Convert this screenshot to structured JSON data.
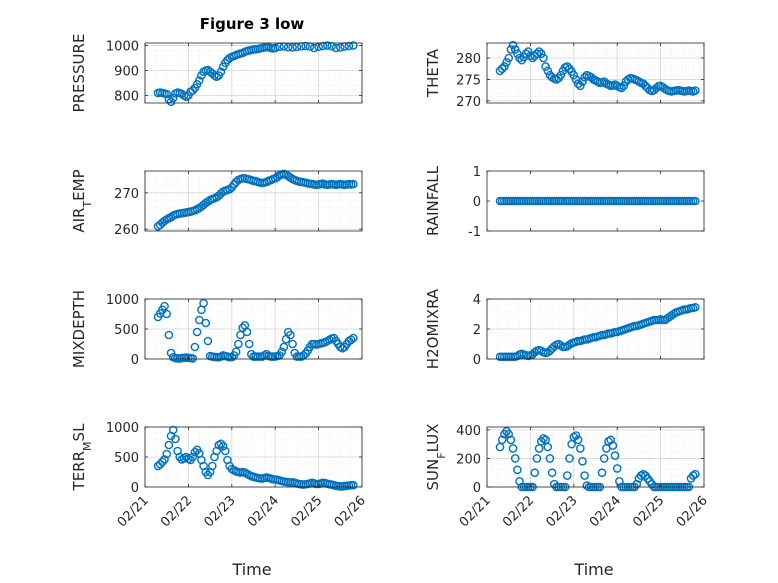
{
  "figure": {
    "title": "Figure 3 low",
    "xlabel": "Time",
    "x_ticks": [
      "02/21",
      "02/22",
      "02/23",
      "02/24",
      "02/25",
      "02/26"
    ],
    "marker_color": "#0072BD"
  },
  "chart_data": [
    {
      "type": "scatter",
      "ylabel": "PRESSURE",
      "ylim": [
        770,
        1010
      ],
      "yticks": [
        800,
        900,
        1000
      ],
      "grid": true,
      "x": [
        0.3,
        0.35,
        0.4,
        0.45,
        0.5,
        0.55,
        0.6,
        0.65,
        0.7,
        0.75,
        0.8,
        0.85,
        0.9,
        0.95,
        1.0,
        1.05,
        1.1,
        1.15,
        1.2,
        1.25,
        1.3,
        1.35,
        1.4,
        1.45,
        1.5,
        1.55,
        1.6,
        1.65,
        1.7,
        1.75,
        1.8,
        1.85,
        1.9,
        1.95,
        2.0,
        2.05,
        2.1,
        2.15,
        2.2,
        2.25,
        2.3,
        2.35,
        2.4,
        2.45,
        2.5,
        2.55,
        2.6,
        2.65,
        2.7,
        2.75,
        2.8,
        2.85,
        2.9,
        2.95,
        3.0,
        3.1,
        3.2,
        3.3,
        3.4,
        3.5,
        3.6,
        3.7,
        3.8,
        3.9,
        4.0,
        4.1,
        4.2,
        4.3,
        4.4,
        4.5,
        4.6,
        4.7,
        4.8
      ],
      "y": [
        810,
        812,
        810,
        808,
        806,
        785,
        775,
        790,
        808,
        812,
        810,
        806,
        800,
        795,
        800,
        815,
        820,
        830,
        845,
        860,
        880,
        895,
        900,
        902,
        895,
        888,
        880,
        875,
        880,
        895,
        915,
        930,
        942,
        950,
        955,
        958,
        962,
        965,
        968,
        970,
        975,
        978,
        980,
        982,
        984,
        985,
        986,
        988,
        990,
        992,
        993,
        994,
        990,
        988,
        990,
        995,
        996,
        993,
        992,
        994,
        997,
        998,
        996,
        990,
        995,
        998,
        1000,
        997,
        990,
        992,
        996,
        998,
        1000
      ]
    },
    {
      "type": "scatter",
      "ylabel": "THETA",
      "ylim": [
        269.5,
        283.5
      ],
      "yticks": [
        270,
        275,
        280
      ],
      "grid": true,
      "x": [
        0.3,
        0.35,
        0.4,
        0.45,
        0.5,
        0.55,
        0.6,
        0.65,
        0.7,
        0.75,
        0.8,
        0.85,
        0.9,
        0.95,
        1.0,
        1.05,
        1.1,
        1.15,
        1.2,
        1.25,
        1.3,
        1.35,
        1.4,
        1.45,
        1.5,
        1.55,
        1.6,
        1.65,
        1.7,
        1.75,
        1.8,
        1.85,
        1.9,
        1.95,
        2.0,
        2.05,
        2.1,
        2.15,
        2.2,
        2.25,
        2.3,
        2.35,
        2.4,
        2.45,
        2.5,
        2.55,
        2.6,
        2.65,
        2.7,
        2.75,
        2.8,
        2.85,
        2.9,
        2.95,
        3.0,
        3.05,
        3.1,
        3.15,
        3.2,
        3.25,
        3.3,
        3.35,
        3.4,
        3.45,
        3.5,
        3.55,
        3.6,
        3.65,
        3.7,
        3.75,
        3.8,
        3.85,
        3.9,
        3.95,
        4.0,
        4.05,
        4.1,
        4.15,
        4.2,
        4.25,
        4.3,
        4.35,
        4.4,
        4.45,
        4.5,
        4.55,
        4.6,
        4.65,
        4.7,
        4.75,
        4.8
      ],
      "y": [
        277,
        277.5,
        278,
        279,
        280,
        282,
        283,
        282,
        281,
        280,
        279.5,
        280.2,
        281,
        281.5,
        280.5,
        280,
        280.5,
        281,
        281.5,
        281,
        280,
        278,
        277,
        276,
        275.5,
        275.2,
        275,
        275.3,
        276,
        277,
        277.8,
        278,
        277.5,
        276.8,
        276,
        275,
        274,
        273.5,
        274.5,
        275.5,
        276,
        275.8,
        275.5,
        275,
        274.8,
        274.5,
        274.2,
        274.3,
        274.5,
        274,
        273.8,
        273.5,
        273.6,
        273.8,
        273.5,
        273.2,
        273,
        273.5,
        274.5,
        275,
        275.3,
        275.2,
        275,
        274.8,
        274.5,
        274.2,
        274,
        273.5,
        273,
        272.5,
        272.3,
        272.5,
        273,
        273.4,
        273.5,
        273.2,
        272.8,
        272.5,
        272.3,
        272.2,
        272.3,
        272.4,
        272.5,
        272.4,
        272.3,
        272.2,
        272.3,
        272.4,
        272.3,
        272.2,
        272.4
      ]
    },
    {
      "type": "scatter",
      "ylabel": "AIR_TEMP",
      "ylim": [
        259.5,
        276
      ],
      "yticks": [
        260,
        270
      ],
      "grid": true,
      "x": [
        0.3,
        0.35,
        0.4,
        0.45,
        0.5,
        0.55,
        0.6,
        0.65,
        0.7,
        0.75,
        0.8,
        0.85,
        0.9,
        0.95,
        1.0,
        1.05,
        1.1,
        1.15,
        1.2,
        1.25,
        1.3,
        1.35,
        1.4,
        1.45,
        1.5,
        1.55,
        1.6,
        1.65,
        1.7,
        1.75,
        1.8,
        1.85,
        1.9,
        1.95,
        2.0,
        2.05,
        2.1,
        2.15,
        2.2,
        2.25,
        2.3,
        2.35,
        2.4,
        2.45,
        2.5,
        2.55,
        2.6,
        2.65,
        2.7,
        2.75,
        2.8,
        2.85,
        2.9,
        2.95,
        3.0,
        3.05,
        3.1,
        3.15,
        3.2,
        3.25,
        3.3,
        3.35,
        3.4,
        3.45,
        3.5,
        3.55,
        3.6,
        3.65,
        3.7,
        3.75,
        3.8,
        3.85,
        3.9,
        3.95,
        4.0,
        4.05,
        4.1,
        4.15,
        4.2,
        4.25,
        4.3,
        4.35,
        4.4,
        4.45,
        4.5,
        4.55,
        4.6,
        4.65,
        4.7,
        4.75,
        4.8
      ],
      "y": [
        260.8,
        261.2,
        261.8,
        262.3,
        262.7,
        263,
        263.3,
        263.7,
        264,
        264.2,
        264.3,
        264.4,
        264.5,
        264.6,
        264.7,
        264.8,
        265,
        265.2,
        265.5,
        265.8,
        266.2,
        266.7,
        267.2,
        267.6,
        268,
        268.3,
        268.5,
        268.8,
        269.2,
        269.8,
        270.3,
        270.6,
        270.8,
        271,
        271.5,
        272.3,
        273,
        273.5,
        273.8,
        274,
        274,
        273.8,
        273.7,
        273.5,
        273.3,
        273.2,
        273,
        272.8,
        272.7,
        272.8,
        273,
        273.3,
        273.5,
        273.8,
        274,
        274.3,
        274.8,
        275,
        275.2,
        275,
        274.6,
        274.2,
        273.8,
        273.5,
        273.3,
        273.1,
        273,
        272.9,
        272.8,
        272.6,
        272.5,
        272.4,
        272.3,
        272.2,
        272.3,
        272.4,
        272.5,
        272.3,
        272.2,
        272.3,
        272.4,
        272.3,
        272.2,
        272.3,
        272.4,
        272.3,
        272.2,
        272.3,
        272.4,
        272.3,
        272.4
      ]
    },
    {
      "type": "scatter",
      "ylabel": "RAINFALL",
      "ylim": [
        -1,
        1
      ],
      "yticks": [
        -1,
        0,
        1
      ],
      "grid": false,
      "x_range": [
        0.3,
        4.8
      ],
      "point_count": 91,
      "constant_value": 0
    },
    {
      "type": "scatter",
      "ylabel": "MIXDEPTH",
      "ylim": [
        0,
        1000
      ],
      "yticks": [
        0,
        500,
        1000
      ],
      "grid": true,
      "x": [
        0.3,
        0.35,
        0.4,
        0.45,
        0.5,
        0.55,
        0.6,
        0.65,
        0.7,
        0.75,
        0.8,
        0.85,
        0.9,
        0.95,
        1.0,
        1.05,
        1.1,
        1.15,
        1.2,
        1.25,
        1.3,
        1.35,
        1.4,
        1.45,
        1.5,
        1.55,
        1.6,
        1.65,
        1.7,
        1.75,
        1.8,
        1.85,
        1.9,
        1.95,
        2.0,
        2.05,
        2.1,
        2.15,
        2.2,
        2.25,
        2.3,
        2.35,
        2.4,
        2.45,
        2.5,
        2.55,
        2.6,
        2.65,
        2.7,
        2.75,
        2.8,
        2.85,
        2.9,
        2.95,
        3.0,
        3.05,
        3.1,
        3.15,
        3.2,
        3.25,
        3.3,
        3.35,
        3.4,
        3.45,
        3.5,
        3.55,
        3.6,
        3.65,
        3.7,
        3.75,
        3.8,
        3.85,
        3.9,
        3.95,
        4.0,
        4.05,
        4.1,
        4.15,
        4.2,
        4.25,
        4.3,
        4.35,
        4.4,
        4.45,
        4.5,
        4.55,
        4.6,
        4.65,
        4.7,
        4.75,
        4.8
      ],
      "y": [
        700,
        760,
        820,
        880,
        750,
        400,
        100,
        30,
        15,
        10,
        10,
        15,
        20,
        25,
        20,
        15,
        10,
        200,
        450,
        650,
        820,
        930,
        600,
        300,
        50,
        40,
        35,
        30,
        30,
        40,
        60,
        50,
        40,
        30,
        30,
        60,
        120,
        250,
        400,
        520,
        560,
        450,
        250,
        80,
        40,
        40,
        40,
        40,
        40,
        60,
        80,
        50,
        40,
        40,
        40,
        50,
        60,
        120,
        200,
        330,
        450,
        400,
        250,
        100,
        40,
        40,
        40,
        60,
        90,
        140,
        200,
        250,
        250,
        240,
        250,
        260,
        270,
        280,
        300,
        320,
        340,
        350,
        300,
        250,
        200,
        180,
        200,
        250,
        300,
        320,
        350
      ]
    },
    {
      "type": "scatter",
      "ylabel": "H2OMIXRA",
      "ylim": [
        0,
        4
      ],
      "yticks": [
        0,
        2,
        4
      ],
      "grid": true,
      "x": [
        0.3,
        0.35,
        0.4,
        0.45,
        0.5,
        0.55,
        0.6,
        0.65,
        0.7,
        0.75,
        0.8,
        0.85,
        0.9,
        0.95,
        1.0,
        1.05,
        1.1,
        1.15,
        1.2,
        1.25,
        1.3,
        1.35,
        1.4,
        1.45,
        1.5,
        1.55,
        1.6,
        1.65,
        1.7,
        1.75,
        1.8,
        1.85,
        1.9,
        1.95,
        2.0,
        2.05,
        2.1,
        2.15,
        2.2,
        2.25,
        2.3,
        2.35,
        2.4,
        2.45,
        2.5,
        2.55,
        2.6,
        2.65,
        2.7,
        2.75,
        2.8,
        2.85,
        2.9,
        2.95,
        3.0,
        3.05,
        3.1,
        3.15,
        3.2,
        3.25,
        3.3,
        3.35,
        3.4,
        3.45,
        3.5,
        3.55,
        3.6,
        3.65,
        3.7,
        3.75,
        3.8,
        3.85,
        3.9,
        3.95,
        4.0,
        4.05,
        4.1,
        4.15,
        4.2,
        4.25,
        4.3,
        4.35,
        4.4,
        4.45,
        4.5,
        4.55,
        4.6,
        4.65,
        4.7,
        4.75,
        4.8
      ],
      "y": [
        0.15,
        0.15,
        0.15,
        0.15,
        0.15,
        0.15,
        0.15,
        0.15,
        0.2,
        0.3,
        0.35,
        0.3,
        0.25,
        0.2,
        0.25,
        0.3,
        0.45,
        0.55,
        0.6,
        0.55,
        0.45,
        0.4,
        0.45,
        0.55,
        0.7,
        0.85,
        0.95,
        1.0,
        0.9,
        0.8,
        0.8,
        0.85,
        0.95,
        1.05,
        1.1,
        1.15,
        1.2,
        1.2,
        1.25,
        1.3,
        1.3,
        1.35,
        1.4,
        1.45,
        1.45,
        1.5,
        1.55,
        1.6,
        1.6,
        1.65,
        1.7,
        1.7,
        1.75,
        1.8,
        1.8,
        1.85,
        1.9,
        1.95,
        2.0,
        2.05,
        2.1,
        2.15,
        2.2,
        2.2,
        2.25,
        2.3,
        2.35,
        2.4,
        2.45,
        2.5,
        2.55,
        2.6,
        2.6,
        2.6,
        2.65,
        2.6,
        2.6,
        2.7,
        2.8,
        2.9,
        3.0,
        3.1,
        3.15,
        3.2,
        3.25,
        3.3,
        3.3,
        3.35,
        3.4,
        3.4,
        3.45
      ]
    },
    {
      "type": "scatter",
      "ylabel": "TERR_MSL",
      "ylim": [
        0,
        1000
      ],
      "yticks": [
        0,
        500,
        1000
      ],
      "grid": true,
      "x": [
        0.3,
        0.35,
        0.4,
        0.45,
        0.5,
        0.55,
        0.6,
        0.65,
        0.7,
        0.75,
        0.8,
        0.85,
        0.9,
        0.95,
        1.0,
        1.05,
        1.1,
        1.15,
        1.2,
        1.25,
        1.3,
        1.35,
        1.4,
        1.45,
        1.5,
        1.55,
        1.6,
        1.65,
        1.7,
        1.75,
        1.8,
        1.85,
        1.9,
        1.95,
        2.0,
        2.05,
        2.1,
        2.15,
        2.2,
        2.25,
        2.3,
        2.35,
        2.4,
        2.45,
        2.5,
        2.55,
        2.6,
        2.65,
        2.7,
        2.75,
        2.8,
        2.85,
        2.9,
        2.95,
        3.0,
        3.05,
        3.1,
        3.15,
        3.2,
        3.25,
        3.3,
        3.35,
        3.4,
        3.45,
        3.5,
        3.55,
        3.6,
        3.65,
        3.7,
        3.75,
        3.8,
        3.85,
        3.9,
        3.95,
        4.0,
        4.05,
        4.1,
        4.15,
        4.2,
        4.25,
        4.3,
        4.35,
        4.4,
        4.45,
        4.5,
        4.55,
        4.6,
        4.65,
        4.7,
        4.75,
        4.8
      ],
      "y": [
        350,
        380,
        420,
        460,
        550,
        700,
        850,
        950,
        800,
        600,
        500,
        460,
        480,
        500,
        470,
        450,
        500,
        580,
        620,
        560,
        450,
        350,
        250,
        200,
        250,
        350,
        500,
        600,
        700,
        720,
        680,
        600,
        450,
        350,
        300,
        280,
        260,
        250,
        240,
        250,
        240,
        220,
        200,
        180,
        170,
        160,
        150,
        145,
        140,
        150,
        160,
        150,
        140,
        130,
        125,
        120,
        110,
        100,
        90,
        85,
        80,
        75,
        80,
        70,
        60,
        50,
        45,
        40,
        45,
        50,
        60,
        70,
        60,
        50,
        50,
        60,
        70,
        65,
        55,
        45,
        40,
        30,
        20,
        15,
        10,
        10,
        15,
        20,
        25,
        30,
        30
      ]
    },
    {
      "type": "scatter",
      "ylabel": "SUN_FLUX",
      "ylim": [
        0,
        420
      ],
      "yticks": [
        0,
        200,
        400
      ],
      "grid": true,
      "x": [
        0.3,
        0.35,
        0.4,
        0.45,
        0.5,
        0.55,
        0.6,
        0.65,
        0.7,
        0.75,
        0.8,
        0.85,
        0.9,
        0.95,
        1.0,
        1.05,
        1.1,
        1.15,
        1.2,
        1.25,
        1.3,
        1.35,
        1.4,
        1.45,
        1.5,
        1.55,
        1.6,
        1.65,
        1.7,
        1.75,
        1.8,
        1.85,
        1.9,
        1.95,
        2.0,
        2.05,
        2.1,
        2.15,
        2.2,
        2.25,
        2.3,
        2.35,
        2.4,
        2.45,
        2.5,
        2.55,
        2.6,
        2.65,
        2.7,
        2.75,
        2.8,
        2.85,
        2.9,
        2.95,
        3.0,
        3.05,
        3.1,
        3.15,
        3.2,
        3.25,
        3.3,
        3.35,
        3.4,
        3.45,
        3.5,
        3.55,
        3.6,
        3.65,
        3.7,
        3.75,
        3.8,
        3.85,
        3.9,
        3.95,
        4.0,
        4.05,
        4.1,
        4.15,
        4.2,
        4.25,
        4.3,
        4.35,
        4.4,
        4.45,
        4.5,
        4.55,
        4.6,
        4.65,
        4.7,
        4.75,
        4.8
      ],
      "y": [
        280,
        330,
        370,
        390,
        370,
        330,
        270,
        200,
        120,
        40,
        0,
        0,
        0,
        0,
        0,
        0,
        100,
        200,
        270,
        320,
        340,
        330,
        280,
        200,
        100,
        20,
        0,
        0,
        0,
        0,
        0,
        80,
        200,
        300,
        350,
        360,
        330,
        270,
        180,
        80,
        10,
        0,
        0,
        0,
        0,
        0,
        0,
        100,
        200,
        270,
        320,
        330,
        290,
        220,
        130,
        40,
        0,
        0,
        0,
        0,
        0,
        0,
        0,
        20,
        60,
        80,
        90,
        80,
        60,
        40,
        20,
        0,
        0,
        0,
        0,
        0,
        0,
        0,
        0,
        0,
        0,
        0,
        0,
        0,
        0,
        0,
        0,
        0,
        60,
        80,
        90
      ]
    }
  ]
}
